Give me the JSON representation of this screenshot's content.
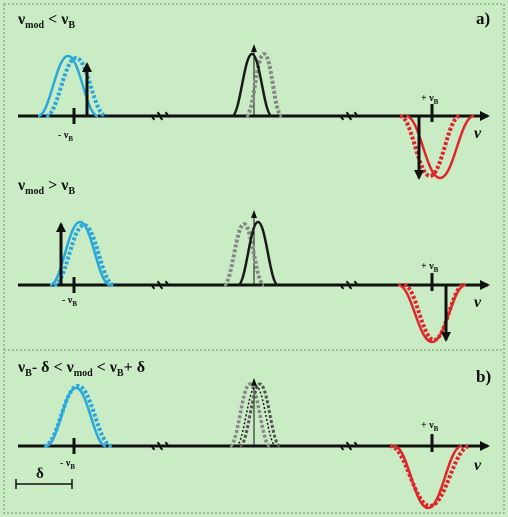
{
  "colors": {
    "background": "#c9ecc4",
    "frame": "#6f8f6f",
    "axis": "#111111",
    "stokes": "#2aa7dc",
    "carrier": "#1a1a1a",
    "antistokes": "#e0262b"
  },
  "panel_a": {
    "label": "a)",
    "row1": {
      "condition": {
        "v": "ν",
        "mod": "mod",
        "op": " < ",
        "v2": "ν",
        "B": "B"
      },
      "minus_label": {
        "prefix": "- ν",
        "sub": "B"
      },
      "plus_label": {
        "prefix": "+ ν",
        "sub": "B"
      },
      "axis_label": "ν"
    },
    "row2": {
      "condition": {
        "v": "ν",
        "mod": "mod",
        "op": " > ",
        "v2": "ν",
        "B": "B"
      },
      "minus_label": {
        "prefix": "- ν",
        "sub": "B"
      },
      "plus_label": {
        "prefix": "+ ν",
        "sub": "B"
      },
      "axis_label": "ν"
    }
  },
  "panel_b": {
    "label": "b)",
    "condition": {
      "v1": "ν",
      "B1": "B",
      "part1": "- δ < ",
      "v2": "ν",
      "mod": "mod",
      "part2": " < ",
      "v3": "ν",
      "B3": "B",
      "part3": "+ δ"
    },
    "minus_label": {
      "prefix": "- ν",
      "sub": "B"
    },
    "plus_label": {
      "prefix": "+ ν",
      "sub": "B"
    },
    "axis_label": "ν",
    "delta_label": "δ"
  }
}
